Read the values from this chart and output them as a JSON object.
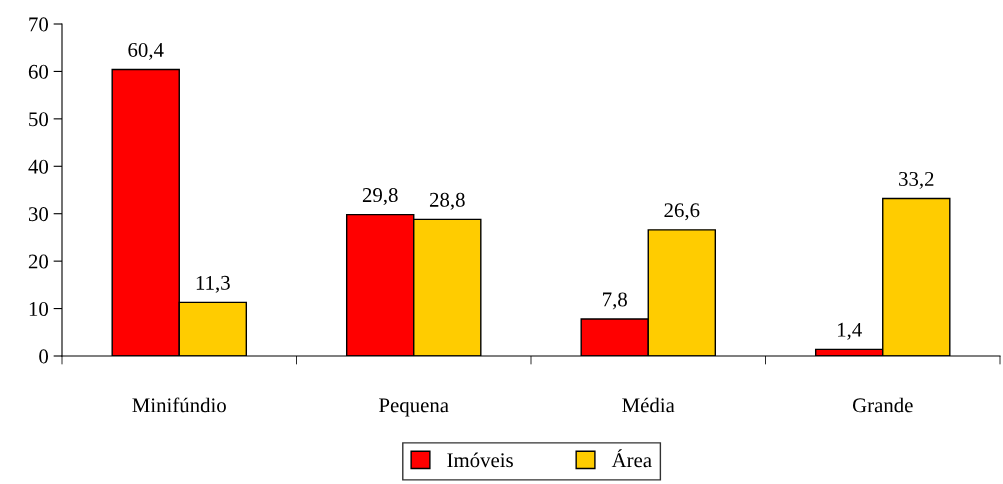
{
  "chart_data": {
    "type": "bar",
    "categories": [
      "Minifúndio",
      "Pequena",
      "Média",
      "Grande"
    ],
    "series": [
      {
        "name": "Imóveis",
        "color": "#ff0000",
        "values": [
          60.4,
          29.8,
          7.8,
          1.4
        ],
        "value_labels": [
          "60,4",
          "29,8",
          "7,8",
          "1,4"
        ]
      },
      {
        "name": "Área",
        "color": "#ffcc00",
        "values": [
          11.3,
          28.8,
          26.6,
          33.2
        ],
        "value_labels": [
          "11,3",
          "28,8",
          "26,6",
          "33,2"
        ]
      }
    ],
    "ylim": [
      0,
      70
    ],
    "yticks": [
      0,
      10,
      20,
      30,
      40,
      50,
      60,
      70
    ],
    "grid": false,
    "legend": "bottom"
  }
}
